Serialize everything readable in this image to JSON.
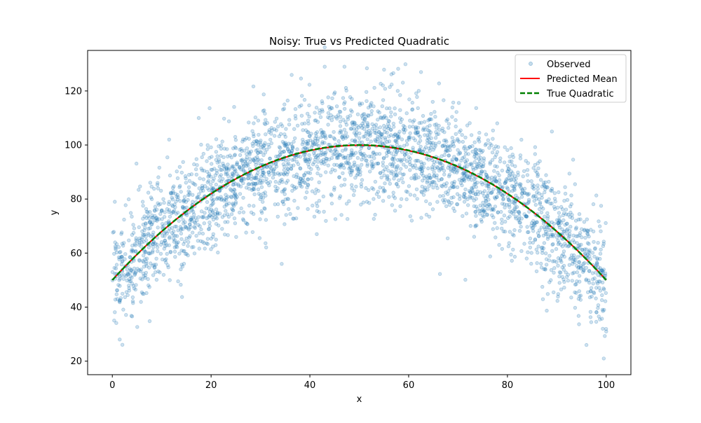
{
  "chart_data": {
    "type": "scatter",
    "title": "Noisy: True vs Predicted Quadratic",
    "xlabel": "x",
    "ylabel": "y",
    "xlim": [
      -5,
      105
    ],
    "ylim": [
      15,
      135
    ],
    "xticks": [
      0,
      20,
      40,
      60,
      80,
      100
    ],
    "yticks": [
      20,
      40,
      60,
      80,
      100,
      120
    ],
    "grid": false,
    "legend_position": "top-right",
    "series": [
      {
        "name": "Observed",
        "kind": "scatter",
        "color": "#1f77b4",
        "point_count": 3000,
        "noise_sd": 10,
        "x_range": [
          0,
          100
        ],
        "sample_points": [
          {
            "x": 0.5,
            "y": 79
          },
          {
            "x": 1,
            "y": 43
          },
          {
            "x": 1.5,
            "y": 28
          },
          {
            "x": 11.5,
            "y": 102
          },
          {
            "x": 17.5,
            "y": 110
          },
          {
            "x": 43,
            "y": 129
          },
          {
            "x": 47,
            "y": 129
          },
          {
            "x": 62.5,
            "y": 127
          },
          {
            "x": 89,
            "y": 105
          },
          {
            "x": 96,
            "y": 26
          },
          {
            "x": 99.5,
            "y": 21
          },
          {
            "x": 100,
            "y": 31
          }
        ]
      },
      {
        "name": "Predicted Mean",
        "kind": "line",
        "color": "#ff0000",
        "line_style": "solid",
        "x": [
          0,
          10,
          20,
          30,
          40,
          50,
          60,
          70,
          80,
          90,
          100
        ],
        "y": [
          50,
          68,
          82,
          92,
          98,
          99.5,
          98,
          92,
          82,
          68,
          50
        ]
      },
      {
        "name": "True Quadratic",
        "kind": "line",
        "color": "#008000",
        "line_style": "dashed",
        "x": [
          0,
          10,
          20,
          30,
          40,
          50,
          60,
          70,
          80,
          90,
          100
        ],
        "y": [
          50,
          68,
          82,
          92,
          98,
          100,
          98,
          92,
          82,
          68,
          50
        ]
      }
    ]
  }
}
